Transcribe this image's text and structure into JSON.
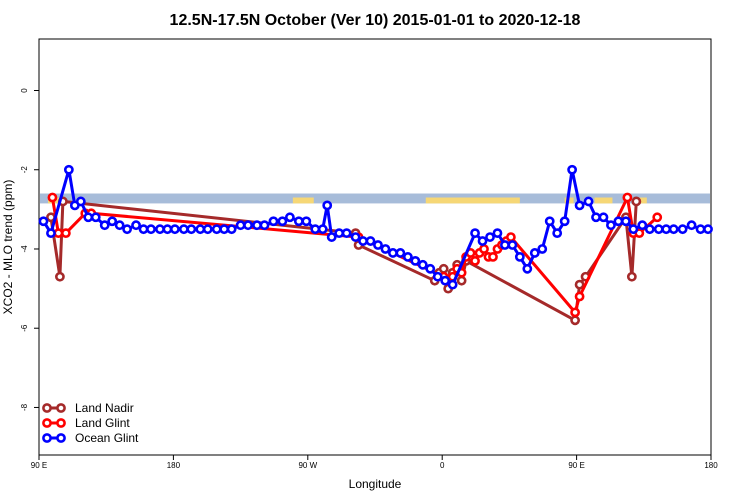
{
  "chart_data": {
    "type": "line",
    "title": "12.5N-17.5N October (Ver 10)   2015-01-01 to 2020-12-18",
    "xlabel": "Longitude",
    "ylabel": "XCO2 - MLO trend (ppm)",
    "xlim": [
      90,
      540
    ],
    "ylim": [
      -9.2,
      1.3
    ],
    "x_ticks": [
      {
        "value": 90,
        "label": "90 E"
      },
      {
        "value": 180,
        "label": "180"
      },
      {
        "value": 270,
        "label": "90 W"
      },
      {
        "value": 360,
        "label": "0"
      },
      {
        "value": 450,
        "label": "90 E"
      },
      {
        "value": 540,
        "label": "180"
      }
    ],
    "y_ticks": [
      {
        "value": 0,
        "label": "0"
      },
      {
        "value": -2,
        "label": "-2"
      },
      {
        "value": -4,
        "label": "-4"
      },
      {
        "value": -6,
        "label": "-6"
      },
      {
        "value": -8,
        "label": "-8"
      }
    ],
    "legend_position": "bottom-left",
    "land_mask": {
      "y_range": [
        -2.6,
        -2.85
      ],
      "ocean_color": "#a7bcd9",
      "land_color": "#f6d776",
      "land_segments": [
        [
          96,
          105
        ],
        [
          260,
          274
        ],
        [
          349,
          412
        ],
        [
          442,
          448
        ],
        [
          462,
          474
        ],
        [
          492,
          497
        ]
      ]
    },
    "series": [
      {
        "name": "Land Nadir",
        "color": "#a52a2a",
        "points": [
          [
            98,
            -3.2
          ],
          [
            104,
            -4.7
          ],
          [
            106,
            -2.8
          ],
          [
            302,
            -3.6
          ],
          [
            304,
            -3.9
          ],
          [
            355,
            -4.8
          ],
          [
            358,
            -4.6
          ],
          [
            361,
            -4.5
          ],
          [
            364,
            -5.0
          ],
          [
            367,
            -4.6
          ],
          [
            370,
            -4.4
          ],
          [
            373,
            -4.8
          ],
          [
            376,
            -4.3
          ],
          [
            449,
            -5.8
          ],
          [
            452,
            -4.9
          ],
          [
            456,
            -4.7
          ],
          [
            483,
            -3.2
          ],
          [
            487,
            -4.7
          ],
          [
            490,
            -2.8
          ]
        ]
      },
      {
        "name": "Land Glint",
        "color": "#ff0000",
        "points": [
          [
            99,
            -2.7
          ],
          [
            103,
            -3.6
          ],
          [
            108,
            -3.6
          ],
          [
            121,
            -3.1
          ],
          [
            125,
            -3.1
          ],
          [
            304,
            -3.7
          ],
          [
            361,
            -4.7
          ],
          [
            364,
            -4.8
          ],
          [
            367,
            -4.7
          ],
          [
            370,
            -4.5
          ],
          [
            373,
            -4.6
          ],
          [
            376,
            -4.2
          ],
          [
            379,
            -4.1
          ],
          [
            382,
            -4.3
          ],
          [
            385,
            -4.1
          ],
          [
            388,
            -4.0
          ],
          [
            391,
            -4.2
          ],
          [
            394,
            -4.2
          ],
          [
            397,
            -4.0
          ],
          [
            400,
            -3.9
          ],
          [
            403,
            -3.8
          ],
          [
            406,
            -3.7
          ],
          [
            449,
            -5.6
          ],
          [
            452,
            -5.2
          ],
          [
            484,
            -2.7
          ],
          [
            488,
            -3.6
          ],
          [
            492,
            -3.6
          ],
          [
            504,
            -3.2
          ]
        ]
      },
      {
        "name": "Ocean Glint",
        "color": "#0000ff",
        "points": [
          [
            93,
            -3.3
          ],
          [
            98,
            -3.6
          ],
          [
            110,
            -2.0
          ],
          [
            114,
            -2.9
          ],
          [
            118,
            -2.8
          ],
          [
            123,
            -3.2
          ],
          [
            128,
            -3.2
          ],
          [
            134,
            -3.4
          ],
          [
            139,
            -3.3
          ],
          [
            144,
            -3.4
          ],
          [
            149,
            -3.5
          ],
          [
            155,
            -3.4
          ],
          [
            160,
            -3.5
          ],
          [
            165,
            -3.5
          ],
          [
            171,
            -3.5
          ],
          [
            176,
            -3.5
          ],
          [
            181,
            -3.5
          ],
          [
            187,
            -3.5
          ],
          [
            192,
            -3.5
          ],
          [
            198,
            -3.5
          ],
          [
            203,
            -3.5
          ],
          [
            209,
            -3.5
          ],
          [
            214,
            -3.5
          ],
          [
            219,
            -3.5
          ],
          [
            225,
            -3.4
          ],
          [
            230,
            -3.4
          ],
          [
            236,
            -3.4
          ],
          [
            241,
            -3.4
          ],
          [
            247,
            -3.3
          ],
          [
            253,
            -3.3
          ],
          [
            258,
            -3.2
          ],
          [
            264,
            -3.3
          ],
          [
            269,
            -3.3
          ],
          [
            275,
            -3.5
          ],
          [
            280,
            -3.5
          ],
          [
            283,
            -2.9
          ],
          [
            286,
            -3.7
          ],
          [
            291,
            -3.6
          ],
          [
            296,
            -3.6
          ],
          [
            302,
            -3.7
          ],
          [
            307,
            -3.8
          ],
          [
            312,
            -3.8
          ],
          [
            317,
            -3.9
          ],
          [
            322,
            -4.0
          ],
          [
            327,
            -4.1
          ],
          [
            332,
            -4.1
          ],
          [
            337,
            -4.2
          ],
          [
            342,
            -4.3
          ],
          [
            347,
            -4.4
          ],
          [
            352,
            -4.5
          ],
          [
            357,
            -4.7
          ],
          [
            362,
            -4.8
          ],
          [
            367,
            -4.9
          ],
          [
            382,
            -3.6
          ],
          [
            387,
            -3.8
          ],
          [
            392,
            -3.7
          ],
          [
            397,
            -3.6
          ],
          [
            402,
            -3.9
          ],
          [
            407,
            -3.9
          ],
          [
            412,
            -4.2
          ],
          [
            417,
            -4.5
          ],
          [
            422,
            -4.1
          ],
          [
            427,
            -4.0
          ],
          [
            432,
            -3.3
          ],
          [
            437,
            -3.6
          ],
          [
            442,
            -3.3
          ],
          [
            447,
            -2.0
          ],
          [
            452,
            -2.9
          ],
          [
            458,
            -2.8
          ],
          [
            463,
            -3.2
          ],
          [
            468,
            -3.2
          ],
          [
            473,
            -3.4
          ],
          [
            478,
            -3.3
          ],
          [
            483,
            -3.3
          ],
          [
            488,
            -3.5
          ],
          [
            494,
            -3.4
          ],
          [
            499,
            -3.5
          ],
          [
            505,
            -3.5
          ],
          [
            510,
            -3.5
          ],
          [
            515,
            -3.5
          ],
          [
            521,
            -3.5
          ],
          [
            527,
            -3.4
          ],
          [
            533,
            -3.5
          ],
          [
            538,
            -3.5
          ]
        ]
      }
    ]
  }
}
